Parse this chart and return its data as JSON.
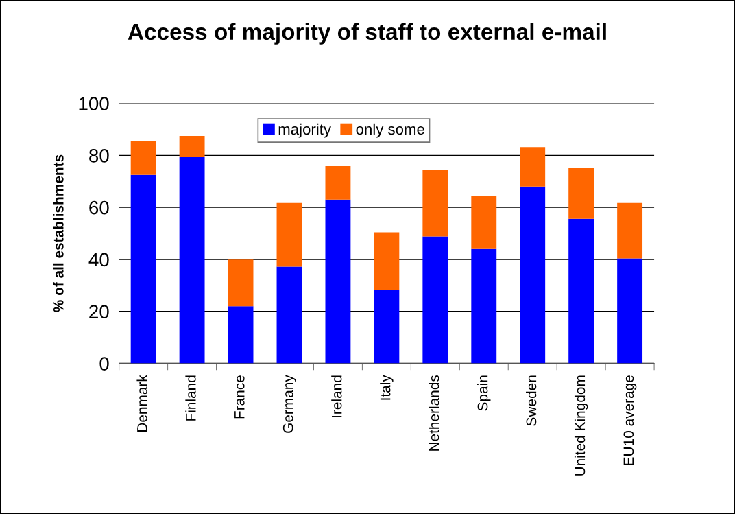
{
  "chart_data": {
    "type": "bar",
    "title": "Access of majority of staff to external e-mail",
    "ylabel": "% of all establishments",
    "categories": [
      "Denmark",
      "Finland",
      "France",
      "Germany",
      "Ireland",
      "Italy",
      "Netherlands",
      "Spain",
      "Sweden",
      "United Kingdom",
      "EU10 average"
    ],
    "stacked": true,
    "series": [
      {
        "name": "majority",
        "color": "#0000ff",
        "values": [
          72.5,
          79.3,
          22.0,
          37.2,
          63.0,
          28.2,
          48.8,
          44.0,
          68.0,
          55.6,
          40.4
        ]
      },
      {
        "name": "only some",
        "color": "#ff6600",
        "values": [
          12.9,
          8.2,
          17.9,
          24.5,
          12.9,
          22.2,
          25.5,
          20.3,
          15.2,
          19.5,
          21.3
        ]
      }
    ],
    "ylim": [
      0,
      100
    ],
    "yticks": [
      0,
      20,
      40,
      60,
      80,
      100
    ],
    "grid": "y",
    "legend": "top"
  }
}
